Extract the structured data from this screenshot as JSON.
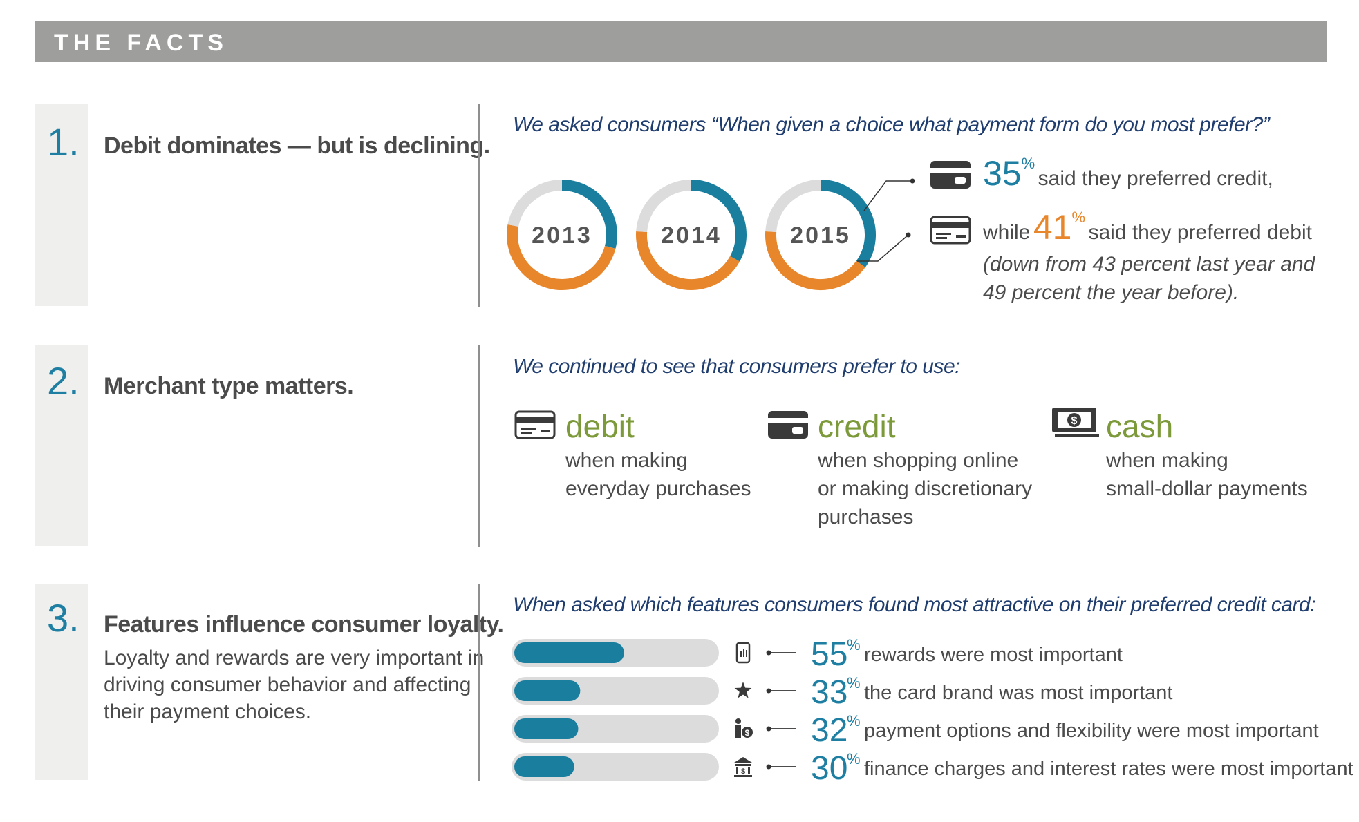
{
  "header": {
    "title": "THE FACTS"
  },
  "sections": [
    {
      "number": "1.",
      "title": "Debit dominates — but is declining.",
      "question": "We asked consumers “When given a choice what payment form do you most prefer?”",
      "credit_line": {
        "pct": "35",
        "pct_sign": "%",
        "text": "said they preferred credit,"
      },
      "debit_line": {
        "prefix": "while",
        "pct": "41",
        "pct_sign": "%",
        "text": "said they preferred debit",
        "note_line1": "(down from 43 percent last year and",
        "note_line2": "49 percent the year before)."
      }
    },
    {
      "number": "2.",
      "title": "Merchant type matters.",
      "question": "We continued to see that consumers prefer to use:",
      "items": [
        {
          "label": "debit",
          "desc": [
            "when making",
            "everyday purchases"
          ],
          "icon": "debit-card-icon"
        },
        {
          "label": "credit",
          "desc": [
            "when shopping online",
            "or making discretionary",
            "purchases"
          ],
          "icon": "credit-card-icon"
        },
        {
          "label": "cash",
          "desc": [
            "when making",
            "small-dollar payments"
          ],
          "icon": "cash-icon"
        }
      ]
    },
    {
      "number": "3.",
      "title": "Features influence consumer loyalty.",
      "subtitle": [
        "Loyalty and rewards are very important in",
        "driving consumer behavior and affecting",
        "their payment choices."
      ],
      "question": "When asked which features consumers found most attractive on their preferred credit card:"
    }
  ],
  "chart_data": [
    {
      "type": "pie",
      "chart": "donut",
      "categories": [
        "2013",
        "2014",
        "2015"
      ],
      "series": [
        {
          "name": "credit",
          "values": [
            29,
            33,
            35
          ],
          "color": "#1a7f9f"
        },
        {
          "name": "debit",
          "values": [
            49,
            43,
            41
          ],
          "color": "#e8862b"
        },
        {
          "name": "other",
          "values": [
            22,
            24,
            24
          ],
          "color": "#dcdcdc"
        }
      ]
    },
    {
      "type": "bar",
      "orientation": "horizontal",
      "categories": [
        "rewards were most important",
        "the card brand was most important",
        "payment options and flexibility were most important",
        "finance charges and interest rates were most important"
      ],
      "values": [
        55,
        33,
        32,
        30
      ],
      "labels": [
        "55",
        "33",
        "32",
        "30"
      ],
      "pct_sign": "%",
      "icons": [
        "phone-icon",
        "star-icon",
        "person-money-icon",
        "bank-icon"
      ],
      "xlim": [
        0,
        100
      ],
      "bar_color": "#1a7f9f",
      "track_color": "#dcdcdc"
    }
  ]
}
